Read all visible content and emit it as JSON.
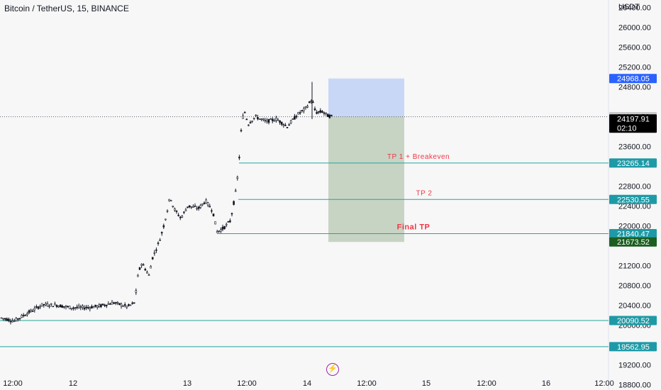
{
  "header": {
    "symbol_title": "Bitcoin / TetherUS, 15, BINANCE"
  },
  "price_axis": {
    "unit": "USDT"
  },
  "chart_data": {
    "type": "candlestick",
    "title": "Bitcoin / TetherUS, 15, BINANCE",
    "y_unit": "USDT",
    "ylim": [
      18690,
      26550
    ],
    "y_ticks": [
      18800,
      19200,
      20000,
      20400,
      20800,
      21200,
      22000,
      22400,
      22800,
      23600,
      24800,
      25200,
      25600,
      26000,
      26400
    ],
    "y_tick_labels": [
      "18800.00",
      "19200.00",
      "20000.00",
      "20400.00",
      "20800.00",
      "21200.00",
      "22000.00",
      "22400.00",
      "22800.00",
      "23600.00",
      "24800.00",
      "25200.00",
      "25600.00",
      "26000.00",
      "26400.00"
    ],
    "x_ticks": [
      "12:00",
      "12",
      "13",
      "12:00",
      "14",
      "12:00",
      "15",
      "12:00",
      "16",
      "12:00"
    ],
    "price_path": [
      [
        0,
        20150
      ],
      [
        20,
        20080
      ],
      [
        40,
        20250
      ],
      [
        60,
        20410
      ],
      [
        80,
        20400
      ],
      [
        100,
        20350
      ],
      [
        120,
        20350
      ],
      [
        140,
        20380
      ],
      [
        160,
        20450
      ],
      [
        180,
        20370
      ],
      [
        190,
        20450
      ],
      [
        195,
        21050
      ],
      [
        200,
        21250
      ],
      [
        210,
        21000
      ],
      [
        215,
        21350
      ],
      [
        225,
        21700
      ],
      [
        230,
        21950
      ],
      [
        235,
        22250
      ],
      [
        240,
        22600
      ],
      [
        245,
        22350
      ],
      [
        255,
        22150
      ],
      [
        265,
        22400
      ],
      [
        280,
        22350
      ],
      [
        290,
        22500
      ],
      [
        300,
        22300
      ],
      [
        306,
        21880
      ],
      [
        315,
        21950
      ],
      [
        325,
        22100
      ],
      [
        332,
        22650
      ],
      [
        336,
        23100
      ],
      [
        340,
        23900
      ],
      [
        344,
        24350
      ],
      [
        350,
        24050
      ],
      [
        360,
        24200
      ],
      [
        375,
        24100
      ],
      [
        390,
        24150
      ],
      [
        405,
        24000
      ],
      [
        420,
        24250
      ],
      [
        430,
        24350
      ],
      [
        440,
        24550
      ],
      [
        445,
        24280
      ],
      [
        455,
        24300
      ],
      [
        462,
        24220
      ],
      [
        468,
        24198
      ]
    ],
    "horizontal_levels": [
      {
        "price": 23265.14,
        "label": "23265.14",
        "annotation": "TP 1 + Breakeven"
      },
      {
        "price": 22530.55,
        "label": "22530.55",
        "annotation": "TP 2"
      },
      {
        "price": 21840.47,
        "label": "21840.47",
        "annotation": "Final TP"
      },
      {
        "price": 20090.52,
        "label": "20090.52",
        "annotation": ""
      },
      {
        "price": 19562.95,
        "label": "19562.95",
        "annotation": ""
      }
    ],
    "position_box": {
      "type": "short",
      "entry": 24199.52,
      "stop": 24968.05,
      "target": 21673.52,
      "stop_label": "24968.05",
      "entry_label": "24199.52",
      "target_label": "21673.52",
      "stop_color": "#c9d7f7",
      "target_color": "#c7d4c4"
    },
    "last_price": {
      "value": 24197.91,
      "label": "24197.91",
      "countdown": "02:10"
    },
    "colors": {
      "level_line": "#26a69a",
      "annotation": "#f23645",
      "candles": "#131722"
    }
  }
}
